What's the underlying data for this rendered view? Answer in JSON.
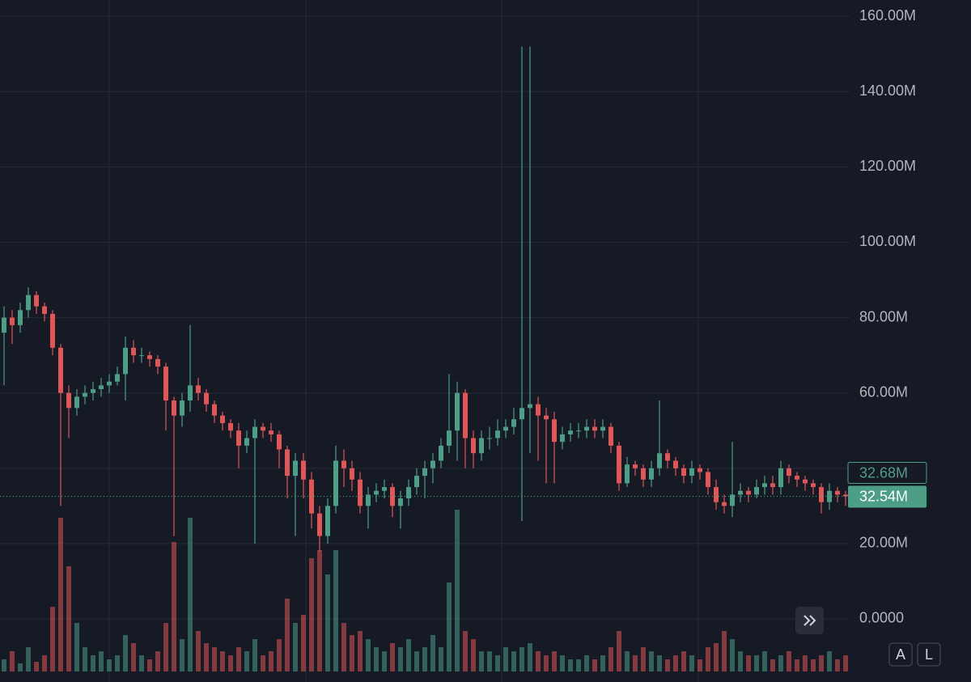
{
  "chart_data": {
    "type": "candlestick",
    "ylim": [
      -16.76,
      164.34
    ],
    "yticks": [
      {
        "value": 0,
        "label": "0.0000"
      },
      {
        "value": 20,
        "label": "20.00M"
      },
      {
        "value": 60,
        "label": "60.00M"
      },
      {
        "value": 80,
        "label": "80.00M"
      },
      {
        "value": 100,
        "label": "100.00M"
      },
      {
        "value": 120,
        "label": "120.00M"
      },
      {
        "value": 140,
        "label": "140.00M"
      },
      {
        "value": 160,
        "label": "160.00M"
      }
    ],
    "grid": true,
    "up_color": "#4c9e86",
    "down_color": "#e05656",
    "open": [
      76,
      80,
      78,
      82,
      86,
      83,
      81,
      72,
      60,
      56,
      59,
      60,
      61,
      62,
      63,
      65,
      72,
      70,
      70,
      69,
      67,
      58,
      54,
      58,
      62,
      60,
      57,
      54,
      52,
      50,
      46,
      48,
      51,
      50,
      49,
      45,
      38,
      42,
      37,
      28,
      22,
      30,
      42,
      40,
      37,
      30,
      33,
      34,
      35,
      30,
      32,
      35,
      38,
      40,
      42,
      46,
      50,
      60,
      48,
      44,
      48,
      48,
      50,
      51,
      53,
      56,
      57,
      54,
      53,
      47,
      49,
      50,
      50,
      51,
      50,
      51,
      46,
      36,
      41,
      40,
      37,
      40,
      44,
      42,
      40,
      38,
      40,
      39,
      35,
      31,
      30,
      33,
      34,
      33,
      35,
      36,
      35,
      40,
      38,
      37,
      36,
      35,
      31,
      34,
      33
    ],
    "high": [
      83,
      82,
      84,
      88,
      87,
      84,
      82,
      73,
      62,
      61,
      62,
      63,
      64,
      65,
      67,
      75,
      74,
      72,
      71,
      70,
      68,
      59,
      60,
      78,
      64,
      61,
      58,
      55,
      53,
      52,
      50,
      53,
      52,
      52,
      50,
      46,
      44,
      44,
      39,
      30,
      32,
      46,
      45,
      42,
      39,
      35,
      36,
      37,
      36,
      34,
      37,
      40,
      42,
      44,
      48,
      65,
      63,
      61,
      50,
      50,
      51,
      53,
      53,
      56,
      152,
      152,
      59,
      56,
      55,
      51,
      52,
      52,
      53,
      53,
      53,
      52,
      47,
      43,
      42,
      41,
      42,
      58,
      45,
      43,
      41,
      42,
      41,
      40,
      37,
      33,
      47,
      36,
      35,
      37,
      38,
      38,
      42,
      41,
      39,
      38,
      37,
      36,
      36,
      35,
      34
    ],
    "low": [
      62,
      73,
      76,
      80,
      81,
      79,
      70,
      30,
      48,
      54,
      57,
      58,
      59,
      60,
      62,
      58,
      68,
      68,
      67,
      65,
      50,
      22,
      51,
      55,
      58,
      55,
      52,
      50,
      48,
      40,
      44,
      20,
      48,
      47,
      40,
      32,
      22,
      32,
      24,
      18,
      20,
      28,
      35,
      34,
      28,
      24,
      31,
      32,
      27,
      24,
      30,
      33,
      32,
      36,
      40,
      44,
      42,
      40,
      40,
      42,
      45,
      46,
      48,
      49,
      26,
      44,
      42,
      36,
      36,
      45,
      47,
      48,
      48,
      48,
      48,
      44,
      34,
      35,
      38,
      35,
      35,
      38,
      40,
      38,
      36,
      36,
      37,
      33,
      29,
      28,
      27,
      31,
      31,
      32,
      33,
      33,
      33,
      36,
      35,
      34,
      33,
      28,
      29,
      31,
      30
    ],
    "close": [
      80,
      78,
      82,
      86,
      83,
      81,
      72,
      60,
      56,
      59,
      60,
      61,
      62,
      63,
      65,
      72,
      70,
      70,
      69,
      67,
      58,
      54,
      58,
      62,
      60,
      57,
      54,
      52,
      50,
      46,
      48,
      51,
      50,
      49,
      45,
      38,
      42,
      37,
      28,
      22,
      30,
      42,
      40,
      37,
      30,
      33,
      34,
      35,
      30,
      32,
      35,
      38,
      40,
      42,
      46,
      50,
      60,
      48,
      44,
      48,
      48,
      50,
      51,
      53,
      56,
      57,
      54,
      53,
      47,
      49,
      50,
      50,
      51,
      50,
      51,
      46,
      36,
      41,
      40,
      37,
      40,
      44,
      42,
      40,
      38,
      40,
      39,
      35,
      31,
      30,
      33,
      34,
      33,
      35,
      36,
      35,
      40,
      38,
      37,
      36,
      35,
      31,
      34,
      33,
      32.54
    ],
    "volume": [
      15,
      25,
      10,
      30,
      12,
      20,
      80,
      190,
      130,
      60,
      30,
      20,
      25,
      15,
      20,
      45,
      35,
      20,
      15,
      25,
      60,
      160,
      40,
      190,
      50,
      35,
      30,
      25,
      20,
      30,
      25,
      40,
      20,
      25,
      40,
      90,
      60,
      70,
      140,
      150,
      120,
      150,
      60,
      45,
      50,
      40,
      30,
      25,
      35,
      30,
      40,
      25,
      30,
      45,
      30,
      110,
      200,
      50,
      40,
      25,
      25,
      20,
      30,
      25,
      30,
      35,
      25,
      20,
      25,
      20,
      15,
      15,
      20,
      15,
      20,
      30,
      50,
      25,
      20,
      30,
      25,
      20,
      15,
      20,
      25,
      20,
      15,
      30,
      35,
      50,
      40,
      25,
      20,
      20,
      25,
      15,
      20,
      25,
      15,
      20,
      15,
      20,
      25,
      15,
      20
    ],
    "volume_lim": [
      0,
      250
    ],
    "price_labels": [
      {
        "value": 32.68,
        "label": "32.68M"
      },
      {
        "value": 32.54,
        "label": "32.54M"
      }
    ]
  },
  "ui": {
    "buttons": [
      "A",
      "L"
    ]
  }
}
